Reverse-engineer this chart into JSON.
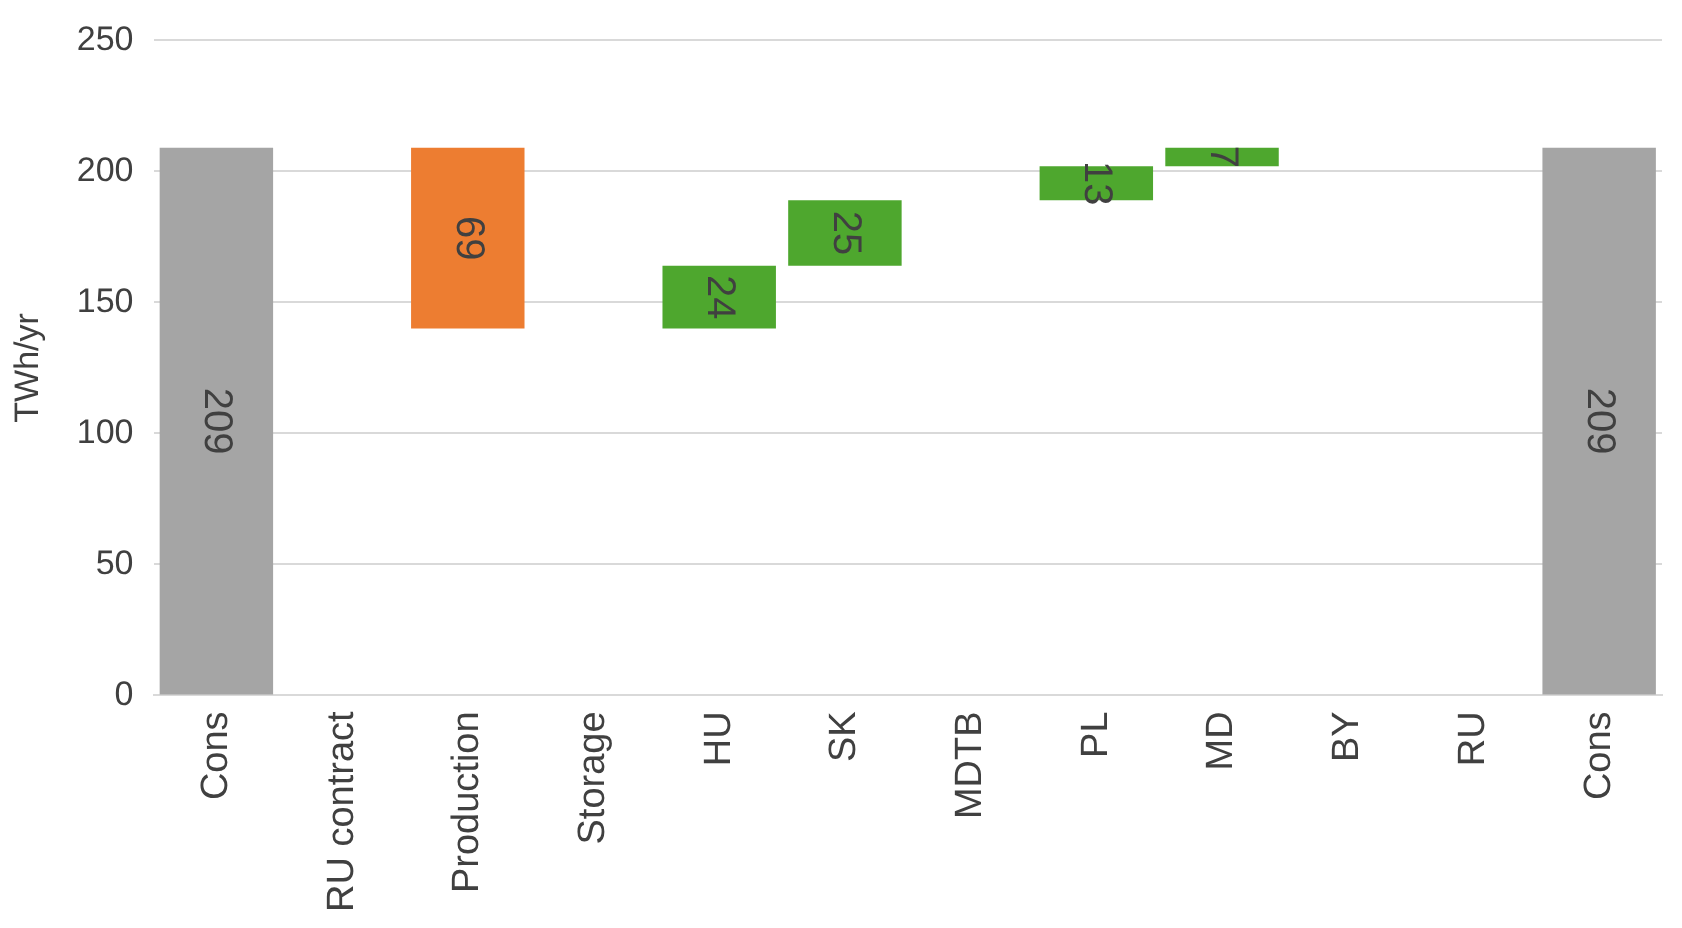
{
  "chart_data": {
    "type": "bar",
    "ylabel": "TWh/yr",
    "categories": [
      "Cons",
      "RU contract",
      "Production",
      "Storage",
      "HU",
      "SK",
      "MDTB",
      "PL",
      "MD",
      "BY",
      "RU",
      "Cons"
    ],
    "values": [
      209,
      null,
      69,
      null,
      24,
      25,
      null,
      13,
      7,
      null,
      null,
      209
    ],
    "base": [
      0,
      null,
      140,
      null,
      140,
      164,
      null,
      189,
      202,
      null,
      null,
      0
    ],
    "colors": [
      "#a5a5a5",
      null,
      "#ed7d31",
      null,
      "#4ea72e",
      "#4ea72e",
      null,
      "#4ea72e",
      "#4ea72e",
      null,
      null,
      "#a5a5a5"
    ],
    "ylim": [
      0,
      250
    ],
    "yticks": [
      0,
      50,
      100,
      150,
      200,
      250
    ],
    "grid": "y",
    "data_labels": true,
    "legend": false
  }
}
